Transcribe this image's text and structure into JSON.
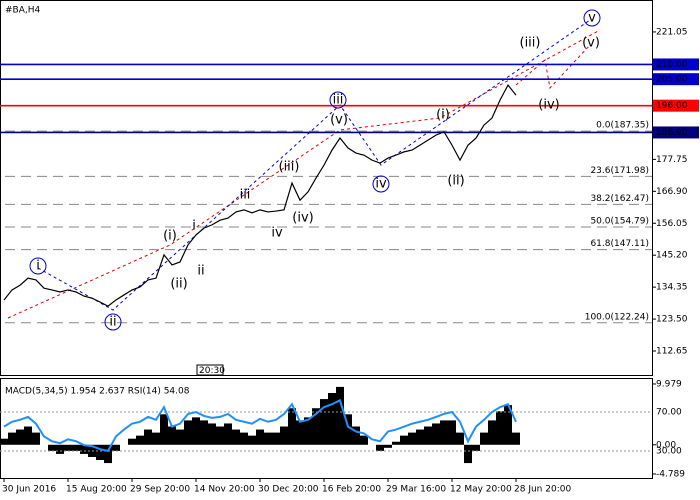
{
  "chart_data": {
    "type": "line",
    "title": "#BA,H4",
    "color": "#000000",
    "categories": [
      "30 Jun 2016",
      null,
      null,
      null,
      null,
      null,
      null,
      null,
      "15 Aug 20:00",
      null,
      null,
      null,
      null,
      null,
      null,
      null,
      "29 Sep 20:00",
      null,
      null,
      null,
      null,
      null,
      null,
      null,
      "14 Nov 20:00",
      null,
      null,
      null,
      null,
      null,
      null,
      null,
      "30 Dec 20:00",
      null,
      null,
      null,
      null,
      null,
      null,
      null,
      "16 Feb 20:00",
      null,
      null,
      null,
      null,
      null,
      null,
      null,
      "29 Mar 16:00",
      null,
      null,
      null,
      null,
      null,
      null,
      null,
      "12 May 20:00",
      null,
      null,
      null,
      null,
      null,
      null,
      null,
      "28 Jun 20:00"
    ],
    "values": [
      130,
      133.4,
      135,
      137.4,
      136.8,
      134,
      133.4,
      132.7,
      133.4,
      132.7,
      131.3,
      130.6,
      129.3,
      127.9,
      130,
      131.7,
      133.4,
      134.4,
      136.8,
      137.4,
      145.3,
      141.9,
      142.9,
      148.7,
      152.1,
      154.4,
      155.5,
      157.1,
      157.8,
      159.9,
      160.6,
      159.6,
      160.6,
      159.9,
      160.2,
      160.6,
      169.7,
      163.9,
      166.7,
      171.4,
      175.8,
      180.9,
      185,
      181.6,
      179.9,
      179.2,
      177.5,
      176.5,
      178.2,
      179.2,
      180.3,
      180.9,
      182.6,
      184.3,
      186,
      187.1,
      182.6,
      177.5,
      182.6,
      185,
      189.4,
      191.8,
      197.9,
      203,
      199.6
    ],
    "ylim": [
      104.5,
      231.9
    ],
    "yticks": [
      {
        "value": 221.05,
        "label": "221.05"
      },
      {
        "value": 177.75,
        "label": "177.75"
      },
      {
        "value": 166.9,
        "label": "166.90"
      },
      {
        "value": 156.05,
        "label": "156.05"
      },
      {
        "value": 145.2,
        "label": "145.20"
      },
      {
        "value": 134.35,
        "label": "134.35"
      },
      {
        "value": 123.5,
        "label": "123.50"
      },
      {
        "value": 112.65,
        "label": "112.65"
      }
    ],
    "levels": [
      {
        "value": 210,
        "label": "210.00",
        "color": "#0000cd"
      },
      {
        "value": 205,
        "label": "205.00",
        "color": "#0000cd"
      },
      {
        "value": 196,
        "label": "196.00",
        "color": "#ff0000"
      },
      {
        "value": 186.9,
        "label": "186.90",
        "color": "#000080"
      }
    ],
    "fib_levels": [
      {
        "value": 187.35,
        "label": "0.0(187.35)"
      },
      {
        "value": 171.98,
        "label": "23.6(171.98)"
      },
      {
        "value": 162.47,
        "label": "38.2(162.47)"
      },
      {
        "value": 154.79,
        "label": "50.0(154.79)"
      },
      {
        "value": 147.11,
        "label": "61.8(147.11)"
      },
      {
        "value": 122.24,
        "label": "100.0(122.24)"
      }
    ],
    "annotations": [
      {
        "text": "i",
        "color": "#0000cd"
      },
      {
        "text": "ii",
        "color": "#0000cd"
      },
      {
        "text": "iii",
        "color": "#0000cd"
      },
      {
        "text": "iv",
        "color": "#0000cd"
      },
      {
        "text": "v",
        "color": "#0000cd"
      },
      {
        "text": "(i)",
        "color": "#e00000"
      },
      {
        "text": "(ii)",
        "color": "#e00000"
      },
      {
        "text": "(iii)",
        "color": "#e00000"
      },
      {
        "text": "(iv)",
        "color": "#e00000"
      },
      {
        "text": "(v)",
        "color": "#e00000"
      },
      {
        "text": "(i)",
        "color": "#e00000"
      },
      {
        "text": "(ii)",
        "color": "#e00000"
      },
      {
        "text": "(iii)",
        "color": "#e00000"
      },
      {
        "text": "(iv)",
        "color": "#e00000"
      },
      {
        "text": "(v)",
        "color": "#e00000"
      },
      {
        "text": "i",
        "color": "#808080"
      },
      {
        "text": "ii",
        "color": "#808080"
      },
      {
        "text": "iii",
        "color": "#808080"
      },
      {
        "text": "iv",
        "color": "#808080"
      }
    ],
    "time_box": "20:30",
    "indicator": {
      "label": "MACD(5,34,5) 1.954 2.637 RSI(14) 54.08",
      "macd_color": "#000000",
      "macd": [
        1,
        2,
        2.5,
        3,
        2,
        0,
        -1,
        -1.5,
        -1,
        -1,
        -1.5,
        -2,
        -2.5,
        -3,
        -1,
        0,
        1,
        1.5,
        2.5,
        2,
        5,
        3,
        2.5,
        4,
        4.5,
        4,
        3.5,
        3,
        3.5,
        2.5,
        2,
        1.5,
        2.5,
        2,
        2,
        3,
        6,
        4,
        4.5,
        6,
        7.5,
        8.5,
        9.5,
        5,
        3,
        1.5,
        0,
        -1,
        -0.5,
        0.5,
        1.5,
        2,
        2.5,
        3,
        3.5,
        4,
        4,
        2,
        -3,
        -1,
        2,
        4,
        5.5,
        6.5,
        2
      ],
      "macd_lim": [
        -5.45,
        10.96
      ],
      "macd_ticks": [
        9.979,
        {
          "value": 0,
          "label": "0.00"
        },
        -4.789
      ],
      "rsi_color": "#1e90ff",
      "rsi": [
        55,
        60,
        62,
        65,
        58,
        45,
        40,
        38,
        42,
        40,
        36,
        35,
        32,
        30,
        45,
        52,
        58,
        60,
        65,
        62,
        75,
        55,
        58,
        68,
        70,
        66,
        64,
        65,
        68,
        62,
        60,
        58,
        63,
        60,
        62,
        68,
        78,
        60,
        62,
        68,
        75,
        78,
        82,
        55,
        50,
        48,
        42,
        40,
        50,
        52,
        55,
        58,
        60,
        62,
        65,
        68,
        70,
        60,
        40,
        55,
        62,
        70,
        75,
        78,
        60
      ],
      "rsi_lim": [
        2.3,
        104.9
      ],
      "rsi_ticks": [
        {
          "value": 70,
          "label": "70.00"
        },
        {
          "value": 30,
          "label": "30.00"
        }
      ]
    }
  }
}
